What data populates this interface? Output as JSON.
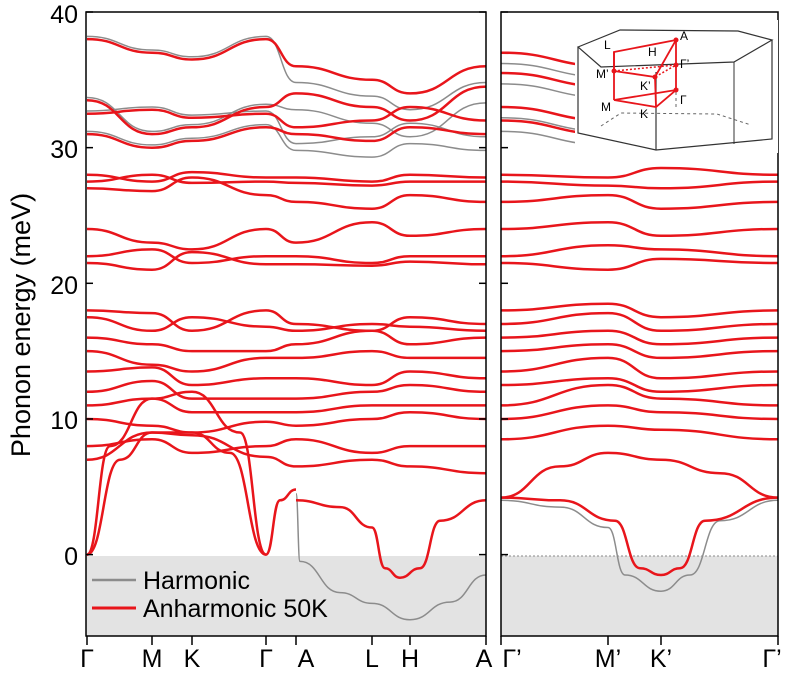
{
  "chart_data": {
    "type": "line",
    "title": "",
    "ylabel": "Phonon energy (meV)",
    "ylim": [
      -6,
      40
    ],
    "y_ticks": [
      0,
      10,
      20,
      30,
      40
    ],
    "panels": [
      {
        "name": "main-path",
        "x_labels": [
          "Γ",
          "M",
          "K",
          "Γ",
          "A",
          "L",
          "H",
          "A"
        ]
      },
      {
        "name": "shifted-path",
        "x_labels": [
          "Γ’",
          "M’",
          "K’",
          "Γ’"
        ]
      }
    ],
    "legend": [
      {
        "name": "Harmonic",
        "color": "#8c8c8c"
      },
      {
        "name": "Anharmonic 50K",
        "color": "#e8151b"
      }
    ],
    "series_notes": {
      "harmonic_min_AH": -4.8,
      "anharmonic_min_H": -1.7,
      "harmonic_min_Kprime": -2.7,
      "anharmonic_min_Kprime": -1.5
    },
    "brillouin_zone_labels": [
      "A",
      "L",
      "H",
      "M’",
      "Γ’",
      "K’",
      "M",
      "K",
      "Γ"
    ]
  },
  "colors": {
    "harmonic": "#8c8c8c",
    "anharmonic": "#e8151b",
    "negative_region": "#e3e3e3"
  }
}
